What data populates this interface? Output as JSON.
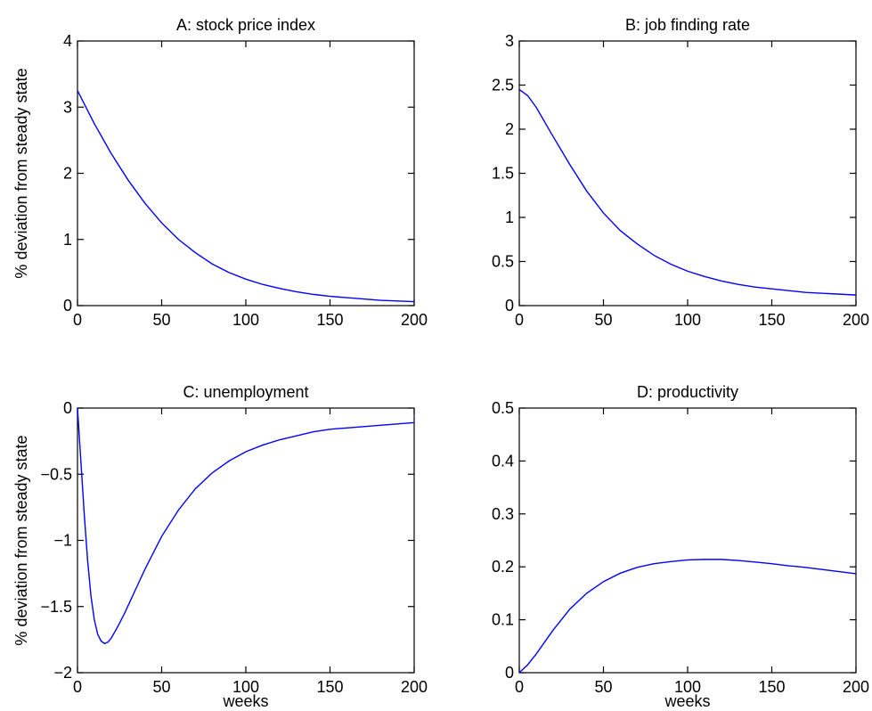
{
  "chart_data": [
    {
      "type": "line",
      "title": "A: stock price index",
      "xlabel": "",
      "ylabel": "% deviation from steady state",
      "xlim": [
        0,
        200
      ],
      "ylim": [
        0,
        4
      ],
      "xticks": [
        0,
        50,
        100,
        150,
        200
      ],
      "xtick_labels": [
        "0",
        "50",
        "100",
        "150",
        "200"
      ],
      "yticks": [
        0,
        1,
        2,
        3,
        4
      ],
      "ytick_labels": [
        "0",
        "1",
        "2",
        "3",
        "4"
      ],
      "grid": false,
      "series": [
        {
          "color": "#0000ff",
          "x": [
            0,
            10,
            20,
            30,
            40,
            50,
            60,
            70,
            80,
            90,
            100,
            110,
            120,
            130,
            140,
            150,
            160,
            170,
            180,
            190,
            200
          ],
          "y": [
            3.25,
            2.75,
            2.3,
            1.9,
            1.55,
            1.25,
            1.0,
            0.8,
            0.63,
            0.5,
            0.4,
            0.32,
            0.26,
            0.21,
            0.17,
            0.14,
            0.12,
            0.1,
            0.08,
            0.07,
            0.06
          ]
        }
      ]
    },
    {
      "type": "line",
      "title": "B: job finding rate",
      "xlabel": "",
      "ylabel": "",
      "xlim": [
        0,
        200
      ],
      "ylim": [
        0,
        3
      ],
      "xticks": [
        0,
        50,
        100,
        150,
        200
      ],
      "xtick_labels": [
        "0",
        "50",
        "100",
        "150",
        "200"
      ],
      "yticks": [
        0,
        0.5,
        1,
        1.5,
        2,
        2.5,
        3
      ],
      "ytick_labels": [
        "0",
        "0.5",
        "1",
        "1.5",
        "2",
        "2.5",
        "3"
      ],
      "grid": false,
      "series": [
        {
          "color": "#0000ff",
          "x": [
            0,
            5,
            10,
            20,
            30,
            40,
            50,
            60,
            70,
            80,
            90,
            100,
            110,
            120,
            130,
            140,
            150,
            160,
            170,
            180,
            190,
            200
          ],
          "y": [
            2.45,
            2.38,
            2.25,
            1.92,
            1.6,
            1.3,
            1.05,
            0.85,
            0.7,
            0.57,
            0.47,
            0.39,
            0.33,
            0.28,
            0.24,
            0.21,
            0.19,
            0.17,
            0.15,
            0.14,
            0.13,
            0.12
          ]
        }
      ]
    },
    {
      "type": "line",
      "title": "C: unemployment",
      "xlabel": "weeks",
      "ylabel": "% deviation from steady state",
      "xlim": [
        0,
        200
      ],
      "ylim": [
        -2,
        0
      ],
      "xticks": [
        0,
        50,
        100,
        150,
        200
      ],
      "xtick_labels": [
        "0",
        "50",
        "100",
        "150",
        "200"
      ],
      "yticks": [
        -2,
        -1.5,
        -1,
        -0.5,
        0
      ],
      "ytick_labels": [
        "−2",
        "−1.5",
        "−1",
        "−0.5",
        "0"
      ],
      "grid": false,
      "series": [
        {
          "color": "#0000ff",
          "x": [
            0,
            1,
            2,
            3,
            4,
            6,
            8,
            10,
            12,
            14,
            16,
            18,
            20,
            24,
            28,
            32,
            36,
            40,
            50,
            60,
            70,
            80,
            90,
            100,
            110,
            120,
            130,
            140,
            150,
            160,
            170,
            180,
            190,
            200
          ],
          "y": [
            0,
            -0.2,
            -0.4,
            -0.6,
            -0.8,
            -1.15,
            -1.42,
            -1.6,
            -1.71,
            -1.76,
            -1.78,
            -1.77,
            -1.74,
            -1.65,
            -1.55,
            -1.44,
            -1.33,
            -1.22,
            -0.97,
            -0.77,
            -0.61,
            -0.49,
            -0.4,
            -0.33,
            -0.28,
            -0.24,
            -0.21,
            -0.18,
            -0.16,
            -0.15,
            -0.14,
            -0.13,
            -0.12,
            -0.11
          ]
        }
      ]
    },
    {
      "type": "line",
      "title": "D: productivity",
      "xlabel": "weeks",
      "ylabel": "",
      "xlim": [
        0,
        200
      ],
      "ylim": [
        0,
        0.5
      ],
      "xticks": [
        0,
        50,
        100,
        150,
        200
      ],
      "xtick_labels": [
        "0",
        "50",
        "100",
        "150",
        "200"
      ],
      "yticks": [
        0,
        0.1,
        0.2,
        0.3,
        0.4,
        0.5
      ],
      "ytick_labels": [
        "0",
        "0.1",
        "0.2",
        "0.3",
        "0.4",
        "0.5"
      ],
      "grid": false,
      "series": [
        {
          "color": "#0000ff",
          "x": [
            0,
            5,
            10,
            20,
            30,
            40,
            50,
            60,
            70,
            80,
            90,
            100,
            110,
            120,
            130,
            140,
            150,
            160,
            170,
            180,
            190,
            200
          ],
          "y": [
            0,
            0.015,
            0.035,
            0.08,
            0.12,
            0.15,
            0.172,
            0.188,
            0.199,
            0.206,
            0.21,
            0.213,
            0.214,
            0.214,
            0.212,
            0.209,
            0.206,
            0.202,
            0.199,
            0.195,
            0.191,
            0.187
          ]
        }
      ]
    }
  ]
}
